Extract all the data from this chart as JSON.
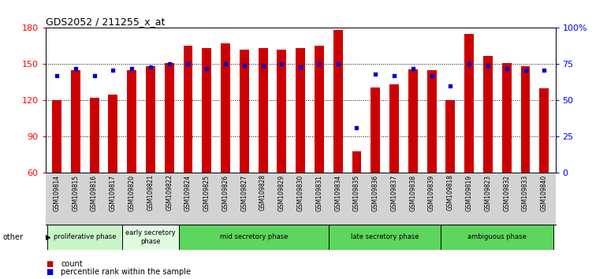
{
  "title": "GDS2052 / 211255_x_at",
  "samples": [
    "GSM109814",
    "GSM109815",
    "GSM109816",
    "GSM109817",
    "GSM109820",
    "GSM109821",
    "GSM109822",
    "GSM109824",
    "GSM109825",
    "GSM109826",
    "GSM109827",
    "GSM109828",
    "GSM109829",
    "GSM109830",
    "GSM109831",
    "GSM109834",
    "GSM109835",
    "GSM109836",
    "GSM109837",
    "GSM109838",
    "GSM109839",
    "GSM109818",
    "GSM109819",
    "GSM109823",
    "GSM109832",
    "GSM109833",
    "GSM109840"
  ],
  "counts": [
    120,
    145,
    122,
    125,
    145,
    148,
    151,
    165,
    163,
    167,
    162,
    163,
    162,
    163,
    165,
    178,
    78,
    131,
    133,
    146,
    145,
    120,
    175,
    157,
    151,
    148,
    130
  ],
  "percentiles": [
    67,
    72,
    67,
    71,
    72,
    73,
    75,
    75,
    72,
    75,
    74,
    74,
    75,
    73,
    75,
    75,
    31,
    68,
    67,
    72,
    67,
    60,
    75,
    74,
    72,
    71,
    71
  ],
  "phases": [
    {
      "label": "proliferative phase",
      "start": 0,
      "end": 4,
      "color": "#c8f5c8"
    },
    {
      "label": "early secretory\nphase",
      "start": 4,
      "end": 7,
      "color": "#e0fae0"
    },
    {
      "label": "mid secretory phase",
      "start": 7,
      "end": 15,
      "color": "#5cd65c"
    },
    {
      "label": "late secretory phase",
      "start": 15,
      "end": 21,
      "color": "#5cd65c"
    },
    {
      "label": "ambiguous phase",
      "start": 21,
      "end": 27,
      "color": "#5cd65c"
    }
  ],
  "ylim_left": [
    60,
    180
  ],
  "ylim_right": [
    0,
    100
  ],
  "yticks_left": [
    60,
    90,
    120,
    150,
    180
  ],
  "yticks_right": [
    0,
    25,
    50,
    75,
    100
  ],
  "bar_color": "#cc0000",
  "dot_color": "#0000cc",
  "bar_width": 0.5,
  "tick_bg": "#d3d3d3",
  "plot_bg": "#ffffff"
}
